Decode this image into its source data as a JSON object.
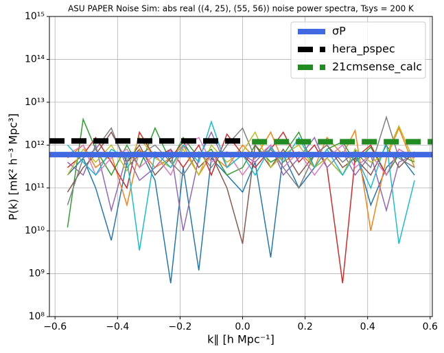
{
  "chart_data": {
    "type": "line",
    "title": "ASU PAPER Noise Sim: abs real ((4, 25), (55, 56)) noise power spectra, Tsys = 200 K",
    "xlabel": "k∥ [h Mpc⁻¹]",
    "ylabel": "P(k) [mK² h⁻³ Mpc³]",
    "ylog": true,
    "grid": true,
    "legend": "upper right",
    "xlim": [
      -0.618,
      0.607
    ],
    "ylim": [
      100000000.0,
      1000000000000000.0
    ],
    "xticks": [
      {
        "value": -0.6,
        "label": "−0.6"
      },
      {
        "value": -0.4,
        "label": "−0.4"
      },
      {
        "value": -0.2,
        "label": "−0.2"
      },
      {
        "value": 0,
        "label": "0.0"
      },
      {
        "value": 0.2,
        "label": "0.2"
      },
      {
        "value": 0.4,
        "label": "0.4"
      },
      {
        "value": 0.6,
        "label": "0.6"
      }
    ],
    "yticks": [
      {
        "value": 100000000.0,
        "label": "10⁸"
      },
      {
        "value": 1000000000.0,
        "label": "10⁹"
      },
      {
        "value": 10000000000.0,
        "label": "10¹⁰"
      },
      {
        "value": 100000000000.0,
        "label": "10¹¹"
      },
      {
        "value": 1000000000000.0,
        "label": "10¹²"
      },
      {
        "value": 10000000000000.0,
        "label": "10¹³"
      },
      {
        "value": 100000000000000.0,
        "label": "10¹⁴"
      },
      {
        "value": 1000000000000000.0,
        "label": "10¹⁵"
      }
    ],
    "x": [
      -0.56,
      -0.51,
      -0.47,
      -0.42,
      -0.37,
      -0.33,
      -0.28,
      -0.23,
      -0.19,
      -0.14,
      -0.1,
      -0.05,
      0,
      0.04,
      0.09,
      0.13,
      0.18,
      0.23,
      0.27,
      0.32,
      0.36,
      0.41,
      0.46,
      0.5,
      0.55
    ],
    "series": [
      {
        "color": "#1f77b4",
        "values": [
          200000000000.0,
          500000000000.0,
          100000000000.0,
          6000000000.0,
          400000000000.0,
          800000000000.0,
          150000000000.0,
          600000000.0,
          300000000000.0,
          1200000000.0,
          500000000000.0,
          200000000000.0,
          80000000000.0,
          400000000000.0,
          2400000000.0,
          600000000000.0,
          100000000000.0,
          300000000000.0,
          500000000000.0,
          200000000000.0,
          800000000000.0,
          40000000000.0,
          300000000000.0,
          600000000000.0,
          200000000000.0
        ]
      },
      {
        "color": "#ff7f0e",
        "values": [
          500000000000.0,
          1000000000000.0,
          300000000000.0,
          600000000000.0,
          40000000000.0,
          800000000000.0,
          300000000000.0,
          500000000000.0,
          1000000000000.0,
          200000000000.0,
          600000000000.0,
          300000000000.0,
          1000000000000.0,
          500000000000.0,
          2000000000000.0,
          400000000000.0,
          700000000000.0,
          300000000000.0,
          1500000000000.0,
          600000000000.0,
          2200000000000.0,
          10000000000.0,
          500000000000.0,
          2500000000000.0,
          300000000000.0
        ]
      },
      {
        "color": "#2ca02c",
        "values": [
          12000000000.0,
          4000000000000.0,
          800000000000.0,
          200000000000.0,
          1000000000000.0,
          300000000000.0,
          2500000000000.0,
          400000000000.0,
          1500000000000.0,
          500000000000.0,
          800000000000.0,
          200000000000.0,
          300000000000.0,
          1000000000000.0,
          400000000000.0,
          600000000000.0,
          2000000000000.0,
          300000000000.0,
          800000000000.0,
          1200000000000.0,
          400000000000.0,
          900000000000.0,
          200000000000.0,
          600000000000.0,
          400000000000.0
        ]
      },
      {
        "color": "#d62728",
        "values": [
          300000000000.0,
          600000000000.0,
          1500000000000.0,
          400000000000.0,
          100000000000.0,
          2000000000000.0,
          500000000000.0,
          800000000000.0,
          300000000000.0,
          1000000000000.0,
          200000000000.0,
          1800000000000.0,
          600000000000.0,
          300000000000.0,
          800000000000.0,
          2000000000000.0,
          400000000000.0,
          1000000000000.0,
          300000000000.0,
          600000000.0,
          500000000000.0,
          1000000000000.0,
          200000000000.0,
          800000000000.0,
          500000000000.0
        ]
      },
      {
        "color": "#9467bd",
        "values": [
          400000000000.0,
          200000000000.0,
          1000000000000.0,
          30000000000.0,
          600000000000.0,
          150000000000.0,
          300000000000.0,
          800000000000.0,
          10000000000.0,
          500000000000.0,
          2000000000000.0,
          300000000000.0,
          600000000000.0,
          400000000000.0,
          1000000000000.0,
          200000000000.0,
          500000000000.0,
          1500000000000.0,
          300000000000.0,
          700000000000.0,
          200000000000.0,
          600000000000.0,
          30000000000.0,
          400000000000.0,
          600000000000.0
        ]
      },
      {
        "color": "#8c564b",
        "values": [
          80000000000.0,
          300000000000.0,
          600000000000.0,
          2000000000000.0,
          400000000000.0,
          1000000000000.0,
          200000000000.0,
          500000000000.0,
          1200000000000.0,
          300000000000.0,
          600000000000.0,
          100000000000.0,
          5000000000.0,
          1000000000000.0,
          300000000000.0,
          800000000000.0,
          200000000000.0,
          600000000000.0,
          1000000000000.0,
          300000000000.0,
          500000000000.0,
          200000000000.0,
          1000000000000.0,
          300000000000.0,
          700000000000.0
        ]
      },
      {
        "color": "#e377c2",
        "values": [
          600000000000.0,
          1000000000000.0,
          200000000000.0,
          500000000000.0,
          800000000000.0,
          300000000000.0,
          600000000000.0,
          200000000000.0,
          900000000000.0,
          1500000000000.0,
          400000000000.0,
          700000000000.0,
          200000000000.0,
          500000000000.0,
          1000000000000.0,
          300000000000.0,
          700000000000.0,
          200000000000.0,
          500000000000.0,
          1000000000000.0,
          300000000000.0,
          600000000000.0,
          200000000000.0,
          800000000000.0,
          500000000000.0
        ]
      },
      {
        "color": "#7f7f7f",
        "values": [
          40000000000.0,
          500000000000.0,
          800000000000.0,
          2500000000000.0,
          300000000000.0,
          600000000000.0,
          1000000000000.0,
          400000000000.0,
          200000000000.0,
          700000000000.0,
          300000000000.0,
          1000000000000.0,
          2500000000000.0,
          500000000000.0,
          800000000000.0,
          300000000000.0,
          100000000000.0,
          600000000000.0,
          1000000000000.0,
          400000000000.0,
          700000000000.0,
          300000000000.0,
          4500000000000.0,
          500000000000.0,
          300000000000.0
        ]
      },
      {
        "color": "#bcbd22",
        "values": [
          200000000000.0,
          800000000000.0,
          400000000000.0,
          1000000000000.0,
          250000000000.0,
          1500000000000.0,
          500000000000.0,
          300000000000.0,
          800000000000.0,
          200000000000.0,
          1000000000000.0,
          400000000000.0,
          700000000000.0,
          2000000000000.0,
          300000000000.0,
          600000000000.0,
          1000000000000.0,
          300000000000.0,
          500000000000.0,
          200000000000.0,
          800000000000.0,
          400000000000.0,
          600000000000.0,
          2800000000000.0,
          400000000000.0
        ]
      },
      {
        "color": "#17becf",
        "values": [
          1000000000000.0,
          400000000000.0,
          200000000000.0,
          800000000000.0,
          500000000000.0,
          3500000000.0,
          700000000000.0,
          300000000000.0,
          1000000000000.0,
          400000000000.0,
          3500000000000.0,
          300000000000.0,
          600000000000.0,
          200000000000.0,
          900000000000.0,
          400000000000.0,
          1500000000000.0,
          300000000000.0,
          800000000000.0,
          200000000000.0,
          600000000000.0,
          100000000000.0,
          1200000000000.0,
          5000000000.0,
          150000000000.0
        ]
      }
    ],
    "lines": [
      {
        "name": "σP",
        "color": "#4169e1",
        "linestyle": "solid",
        "x": [
          -0.618,
          0.607
        ],
        "values": [
          600000000000.0,
          600000000000.0
        ]
      },
      {
        "name": "hera_pspec",
        "color": "#000000",
        "linestyle": "dashed",
        "x": [
          -0.618,
          0
        ],
        "values": [
          1250000000000.0,
          1250000000000.0
        ]
      },
      {
        "name": "21cmsense_calc",
        "color": "#228b22",
        "linestyle": "dashed",
        "x": [
          0.03,
          0.607
        ],
        "values": [
          1200000000000.0,
          1200000000000.0
        ]
      }
    ]
  }
}
